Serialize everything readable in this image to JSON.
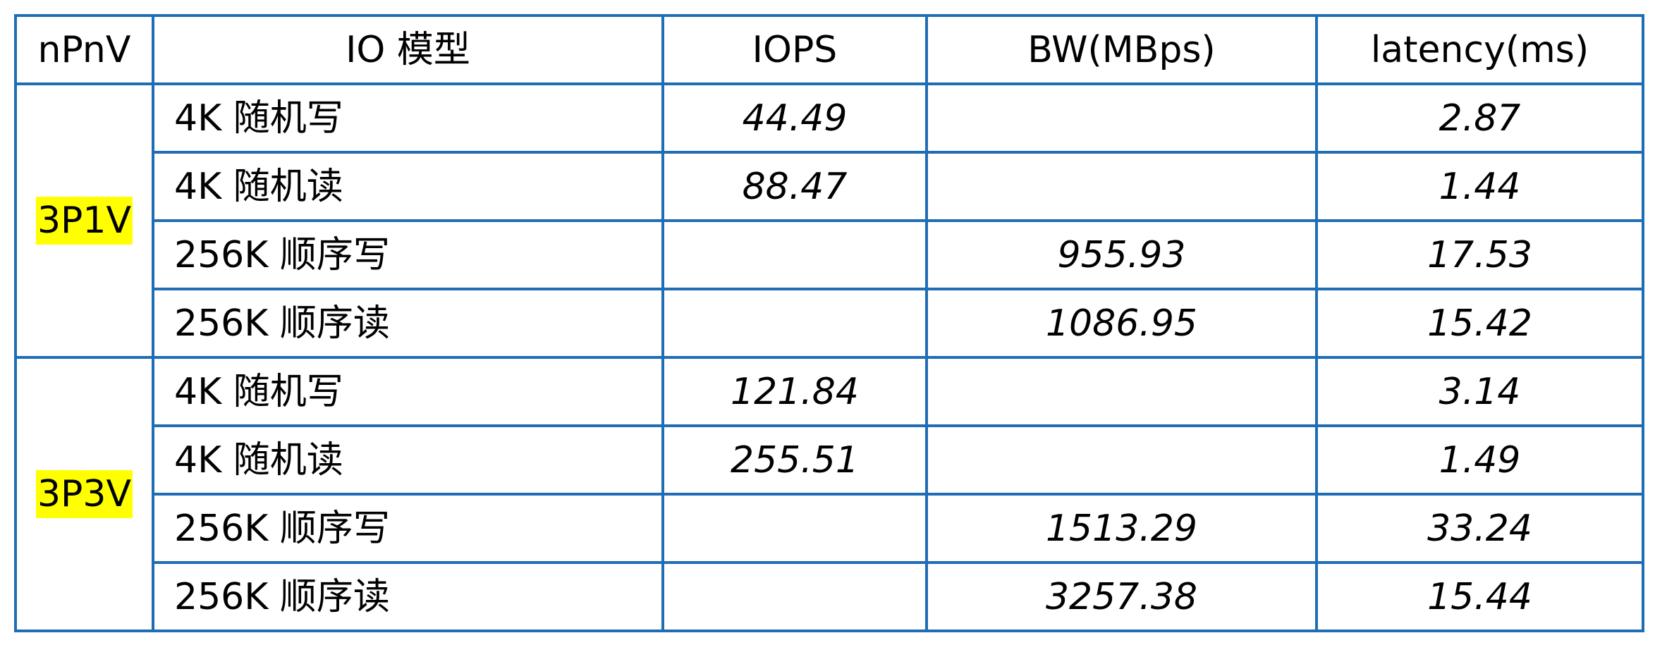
{
  "table": {
    "headers": [
      "nPnV",
      "IO 模型",
      "IOPS",
      "BW(MBps)",
      "latency(ms)"
    ],
    "groups": [
      {
        "label": "3P1V",
        "rows": [
          {
            "model": "4K 随机写",
            "iops": "44.49",
            "bw": "",
            "latency": "2.87"
          },
          {
            "model": "4K 随机读",
            "iops": "88.47",
            "bw": "",
            "latency": "1.44"
          },
          {
            "model": "256K 顺序写",
            "iops": "",
            "bw": "955.93",
            "latency": "17.53"
          },
          {
            "model": "256K 顺序读",
            "iops": "",
            "bw": "1086.95",
            "latency": "15.42"
          }
        ]
      },
      {
        "label": "3P3V",
        "rows": [
          {
            "model": "4K 随机写",
            "iops": "121.84",
            "bw": "",
            "latency": "3.14"
          },
          {
            "model": "4K 随机读",
            "iops": "255.51",
            "bw": "",
            "latency": "1.49"
          },
          {
            "model": "256K 顺序写",
            "iops": "",
            "bw": "1513.29",
            "latency": "33.24"
          },
          {
            "model": "256K 顺序读",
            "iops": "",
            "bw": "3257.38",
            "latency": "15.44"
          }
        ]
      }
    ]
  },
  "colors": {
    "border": "#1f6db5",
    "highlight": "#ffff00"
  }
}
